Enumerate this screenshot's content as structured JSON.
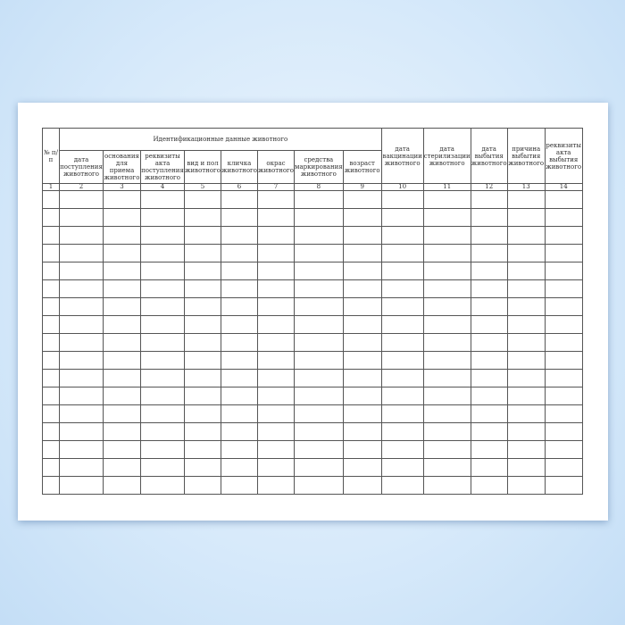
{
  "table": {
    "group_header": "Идентификационные данные животного",
    "columns": [
      "№ п/п",
      "дата поступления животного",
      "основания для приема животного",
      "реквизиты акта поступления животного",
      "вид и пол животного",
      "кличка животного",
      "окрас животного",
      "средства маркирования животного",
      "возраст животного",
      "дата вакцинации животного",
      "дата стерилизации животного",
      "дата выбытия животного",
      "причина выбытия животного",
      "реквизиты акта выбытия животного"
    ],
    "numbers": [
      "1",
      "2",
      "3",
      "4",
      "5",
      "6",
      "7",
      "8",
      "9",
      "10",
      "11",
      "12",
      "13",
      "14"
    ]
  }
}
